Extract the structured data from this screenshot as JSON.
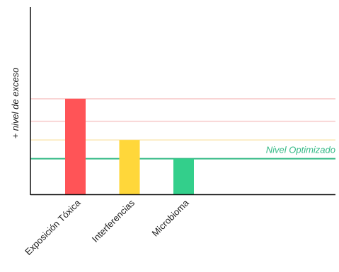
{
  "chart_data": {
    "type": "bar",
    "categories": [
      "Exposición Tóxica",
      "Interferencias",
      "Microbioma"
    ],
    "values": [
      5.1,
      2.9,
      1.9
    ],
    "colors": [
      "#ff5457",
      "#ffd73a",
      "#33cf8b"
    ],
    "xlabel": "",
    "ylabel": "+ nivel de exceso",
    "ylim": [
      0,
      10
    ],
    "grid": false,
    "reference_lines": [
      {
        "value": 5.1,
        "color": "#f7c9c9"
      },
      {
        "value": 3.9,
        "color": "#f7c9c9"
      },
      {
        "value": 2.9,
        "color": "#fbe8b4"
      },
      {
        "value": 1.9,
        "color": "#33b985",
        "label": "Nivel Optimizado"
      }
    ]
  }
}
